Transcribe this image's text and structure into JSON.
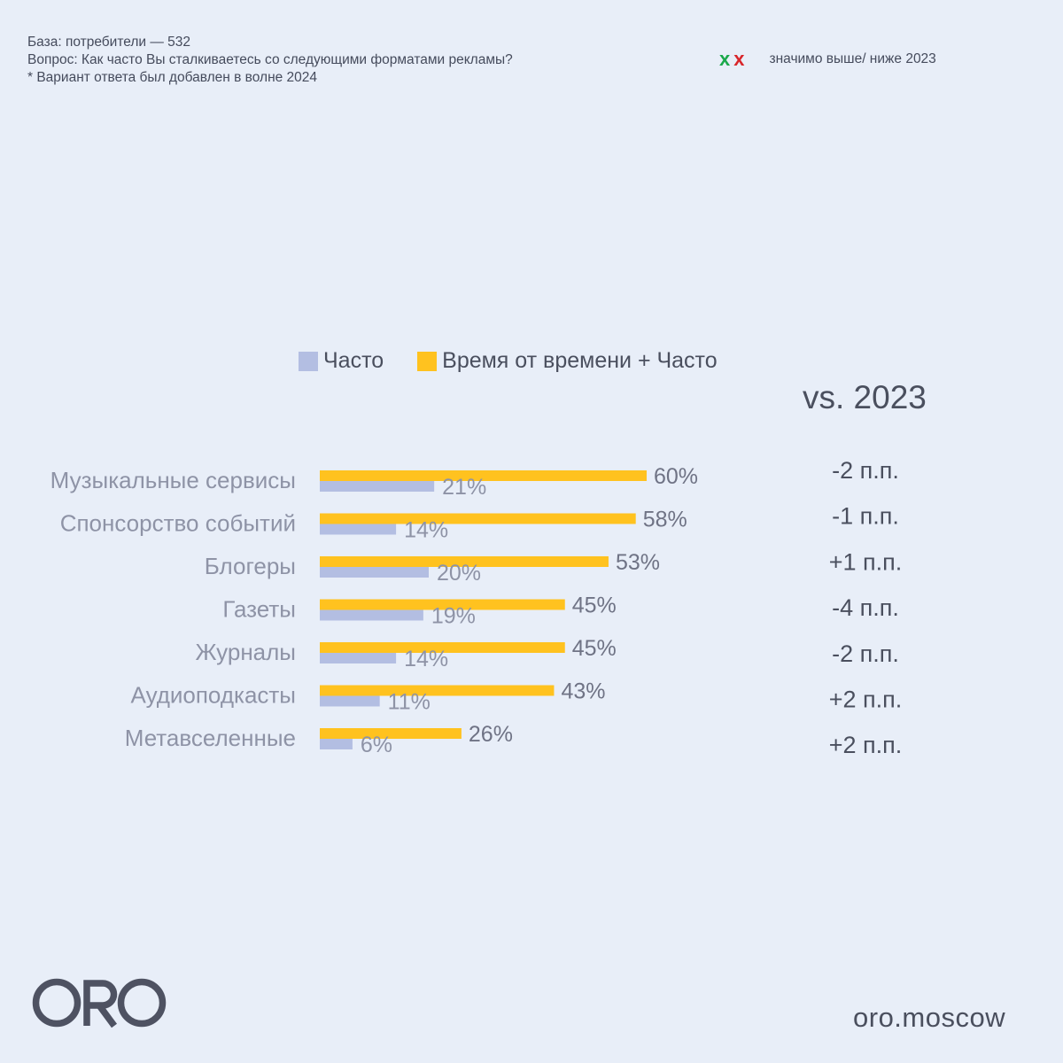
{
  "notes": {
    "base": "База: потребители — 532",
    "question": "Вопрос: Как часто Вы сталкиваетесь со следующими форматами рекламы?",
    "footnote": "* Вариант ответа был добавлен в волне 2024"
  },
  "significance_legend": {
    "higher_mark": "x",
    "lower_mark": "x",
    "higher_color": "#1aa84a",
    "lower_color": "#d8262b",
    "text": "значимо выше/ ниже 2023"
  },
  "chart_data": {
    "type": "bar",
    "orientation": "horizontal",
    "categories": [
      "Музыкальные сервисы",
      "Спонсорство событий",
      "Блогеры",
      "Газеты",
      "Журналы",
      "Аудиоподкасты",
      "Метавселенные"
    ],
    "series": [
      {
        "name": "Часто",
        "color": "#B3BEE2",
        "values": [
          21,
          14,
          20,
          19,
          14,
          11,
          6
        ],
        "labels": [
          "21%",
          "14%",
          "20%",
          "19%",
          "14%",
          "11%",
          "6%"
        ]
      },
      {
        "name": "Время от времени + Часто",
        "color": "#FFC21F",
        "values": [
          60,
          58,
          53,
          45,
          45,
          43,
          26
        ],
        "labels": [
          "60%",
          "58%",
          "53%",
          "45%",
          "45%",
          "43%",
          "26%"
        ]
      }
    ],
    "vs_title": "vs. 2023",
    "vs_2023": [
      "-2 п.п.",
      "-1 п.п.",
      "+1 п.п.",
      "-4 п.п.",
      "-2 п.п.",
      "+2 п.п.",
      "+2 п.п."
    ],
    "xlim": [
      0,
      100
    ],
    "grid": false,
    "legend_position": "top"
  },
  "footer": {
    "logo_text": "ORO",
    "site": "oro.moscow"
  }
}
